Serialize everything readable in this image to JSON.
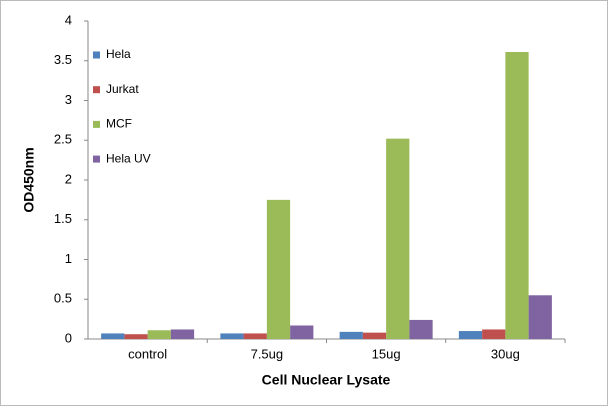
{
  "chart_data": {
    "type": "bar",
    "xlabel": "Cell Nuclear Lysate",
    "ylabel": "OD450nm",
    "categories": [
      "control",
      "7.5ug",
      "15ug",
      "30ug"
    ],
    "series": [
      {
        "name": "Hela",
        "color": "#4f81bd",
        "values": [
          0.07,
          0.07,
          0.09,
          0.1
        ]
      },
      {
        "name": "Jurkat",
        "color": "#c0504d",
        "values": [
          0.06,
          0.07,
          0.08,
          0.12
        ]
      },
      {
        "name": "MCF",
        "color": "#9bbb59",
        "values": [
          0.11,
          1.75,
          2.52,
          3.61
        ]
      },
      {
        "name": "Hela UV",
        "color": "#8064a2",
        "values": [
          0.12,
          0.17,
          0.24,
          0.55
        ]
      }
    ],
    "ylim": [
      0,
      4
    ],
    "yticks": [
      0,
      0.5,
      1,
      1.5,
      2,
      2.5,
      3,
      3.5,
      4
    ],
    "grid": false,
    "legend": "upper left"
  }
}
